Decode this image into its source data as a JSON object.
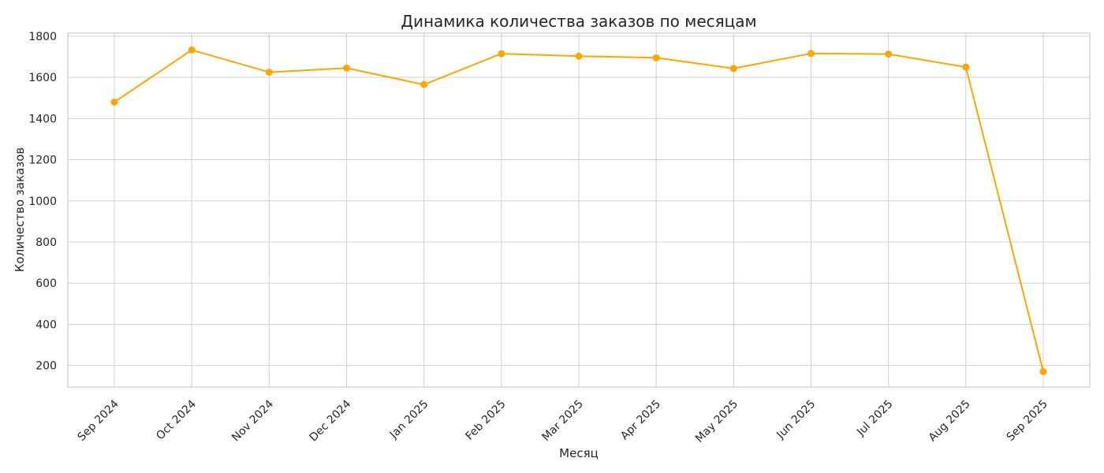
{
  "chart_data": {
    "type": "line",
    "title": "Динамика количества заказов по месяцам",
    "xlabel": "Месяц",
    "ylabel": "Количество заказов",
    "categories": [
      "Sep 2024",
      "Oct 2024",
      "Nov 2024",
      "Dec 2024",
      "Jan 2025",
      "Feb 2025",
      "Mar 2025",
      "Apr 2025",
      "May 2025",
      "Jun 2025",
      "Jul 2025",
      "Aug 2025",
      "Sep 2025"
    ],
    "values": [
      1480,
      1733,
      1625,
      1645,
      1565,
      1715,
      1703,
      1695,
      1643,
      1716,
      1713,
      1650,
      170
    ],
    "ylim": [
      95,
      1815
    ],
    "yticks": [
      200,
      400,
      600,
      800,
      1000,
      1200,
      1400,
      1600,
      1800
    ],
    "grid": true,
    "legend": "none",
    "color": "#ffa500",
    "marker": "circle"
  }
}
